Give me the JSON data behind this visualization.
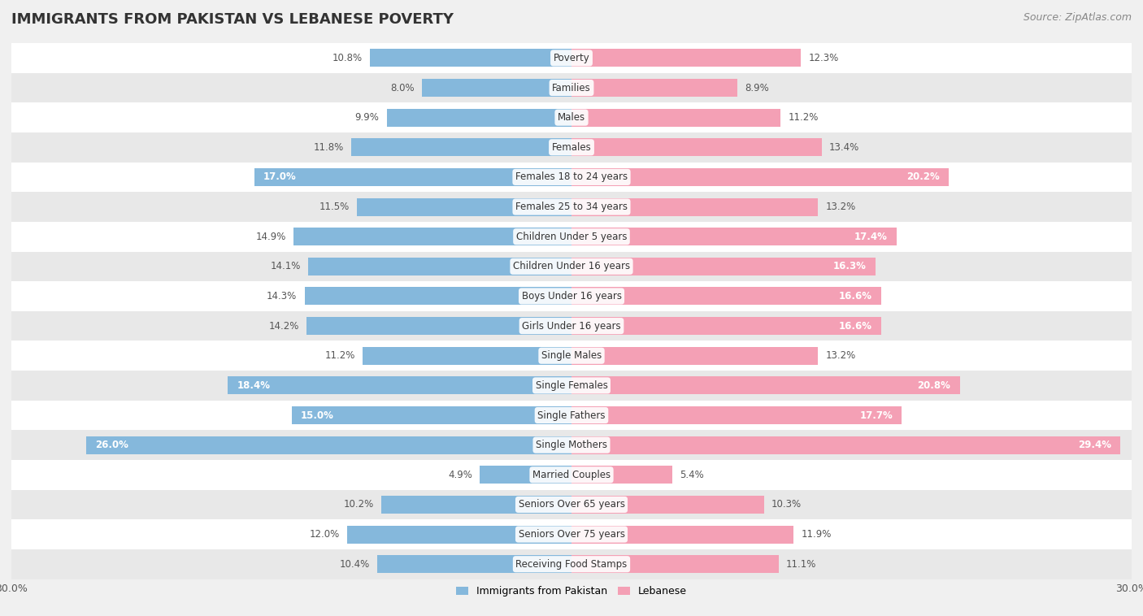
{
  "title": "IMMIGRANTS FROM PAKISTAN VS LEBANESE POVERTY",
  "source": "Source: ZipAtlas.com",
  "categories": [
    "Poverty",
    "Families",
    "Males",
    "Females",
    "Females 18 to 24 years",
    "Females 25 to 34 years",
    "Children Under 5 years",
    "Children Under 16 years",
    "Boys Under 16 years",
    "Girls Under 16 years",
    "Single Males",
    "Single Females",
    "Single Fathers",
    "Single Mothers",
    "Married Couples",
    "Seniors Over 65 years",
    "Seniors Over 75 years",
    "Receiving Food Stamps"
  ],
  "pakistan_values": [
    10.8,
    8.0,
    9.9,
    11.8,
    17.0,
    11.5,
    14.9,
    14.1,
    14.3,
    14.2,
    11.2,
    18.4,
    15.0,
    26.0,
    4.9,
    10.2,
    12.0,
    10.4
  ],
  "lebanese_values": [
    12.3,
    8.9,
    11.2,
    13.4,
    20.2,
    13.2,
    17.4,
    16.3,
    16.6,
    16.6,
    13.2,
    20.8,
    17.7,
    29.4,
    5.4,
    10.3,
    11.9,
    11.1
  ],
  "pakistan_color": "#85B8DC",
  "lebanese_color": "#F4A0B5",
  "pakistan_label": "Immigrants from Pakistan",
  "lebanese_label": "Lebanese",
  "xlim": 30.0,
  "background_color": "#f0f0f0",
  "row_bg_light": "#ffffff",
  "row_bg_dark": "#e8e8e8",
  "title_fontsize": 13,
  "source_fontsize": 9,
  "label_fontsize": 8.5,
  "value_fontsize": 8.5,
  "legend_fontsize": 9,
  "bar_height": 0.6
}
